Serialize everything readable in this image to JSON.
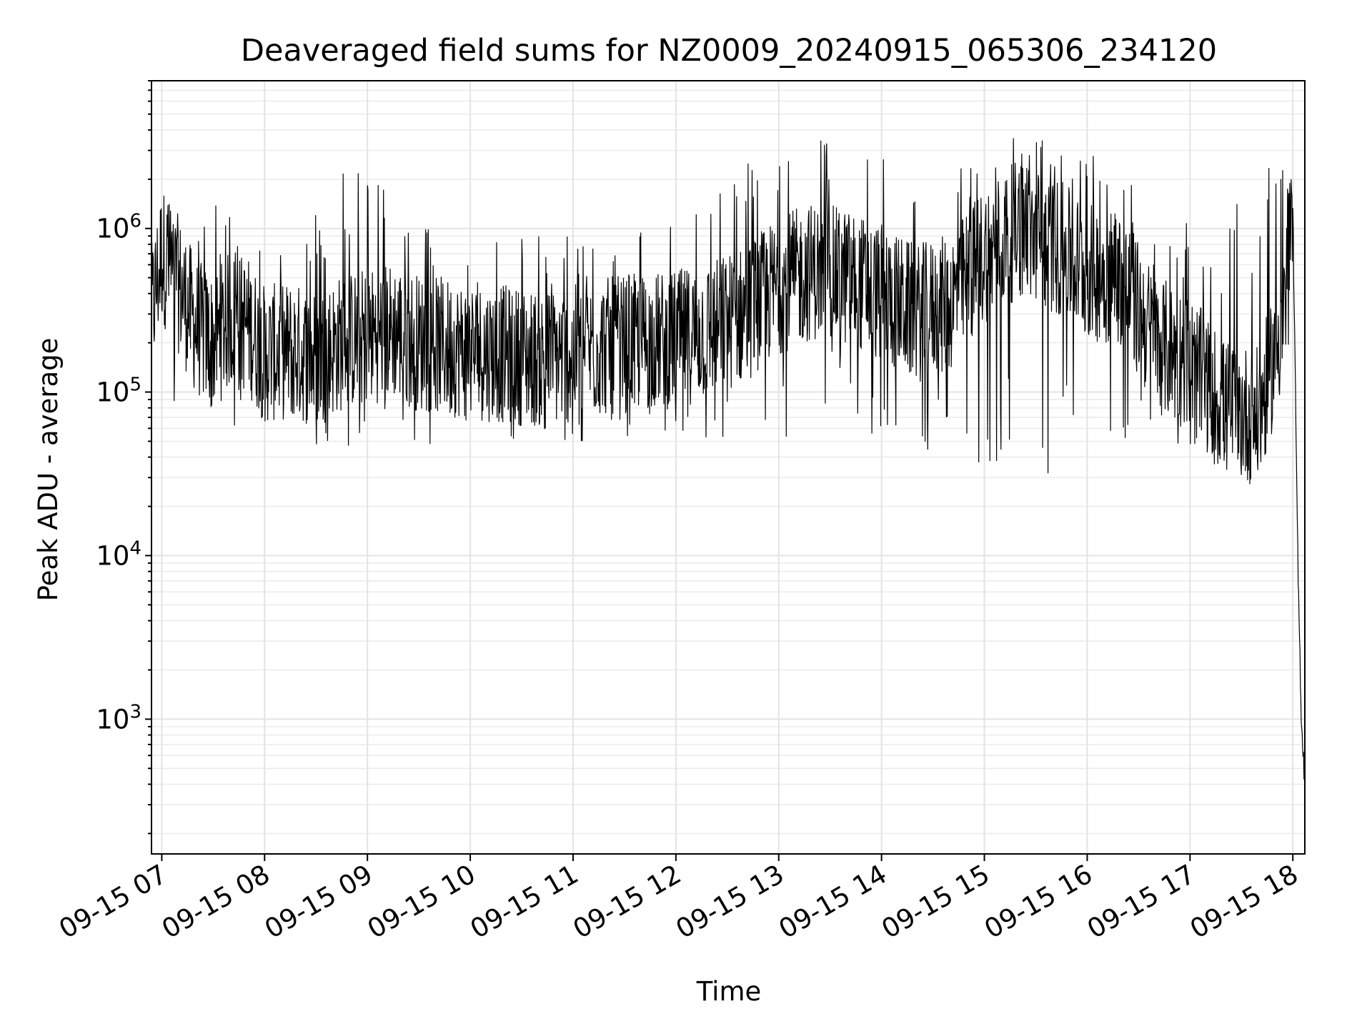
{
  "chart_data": {
    "type": "line",
    "title": "Deaveraged field sums for NZ0009_20240915_065306_234120",
    "xlabel": "Time",
    "ylabel": "Peak ADU - average",
    "yscale": "log",
    "xlim": [
      "2024-09-15 06:54",
      "2024-09-15 18:07"
    ],
    "ylim": [
      150,
      8000000
    ],
    "x_ticks": [
      "09-15 07",
      "09-15 08",
      "09-15 09",
      "09-15 10",
      "09-15 11",
      "09-15 12",
      "09-15 13",
      "09-15 14",
      "09-15 15",
      "09-15 16",
      "09-15 17",
      "09-15 18"
    ],
    "y_ticks": [
      {
        "value": 1000,
        "base": "10",
        "exp": "3"
      },
      {
        "value": 10000,
        "base": "10",
        "exp": "4"
      },
      {
        "value": 100000,
        "base": "10",
        "exp": "5"
      },
      {
        "value": 1000000,
        "base": "10",
        "exp": "6"
      }
    ],
    "grid": true,
    "line_color": "#000000",
    "series": [
      {
        "x": [
          "2024-09-15 06:54",
          "2024-09-15 07:00",
          "2024-09-15 07:10",
          "2024-09-15 07:20",
          "2024-09-15 07:30",
          "2024-09-15 07:40",
          "2024-09-15 07:50",
          "2024-09-15 08:00",
          "2024-09-15 08:15",
          "2024-09-15 08:30",
          "2024-09-15 08:45",
          "2024-09-15 09:00",
          "2024-09-15 09:15",
          "2024-09-15 09:30",
          "2024-09-15 09:45",
          "2024-09-15 10:00",
          "2024-09-15 10:20",
          "2024-09-15 10:40",
          "2024-09-15 11:00",
          "2024-09-15 11:20",
          "2024-09-15 11:40",
          "2024-09-15 12:00",
          "2024-09-15 12:20",
          "2024-09-15 12:40",
          "2024-09-15 13:00",
          "2024-09-15 13:20",
          "2024-09-15 13:40",
          "2024-09-15 14:00",
          "2024-09-15 14:20",
          "2024-09-15 14:40",
          "2024-09-15 15:00",
          "2024-09-15 15:20",
          "2024-09-15 15:40",
          "2024-09-15 16:00",
          "2024-09-15 16:20",
          "2024-09-15 16:40",
          "2024-09-15 17:00",
          "2024-09-15 17:20",
          "2024-09-15 17:40",
          "2024-09-15 17:55",
          "2024-09-15 18:00",
          "2024-09-15 18:03",
          "2024-09-15 18:05",
          "2024-09-15 18:07"
        ],
        "y": [
          300000,
          700000,
          450000,
          250000,
          200000,
          280000,
          260000,
          170000,
          180000,
          160000,
          200000,
          220000,
          240000,
          200000,
          190000,
          180000,
          170000,
          160000,
          170000,
          190000,
          200000,
          210000,
          240000,
          300000,
          450000,
          550000,
          500000,
          400000,
          300000,
          350000,
          700000,
          1000000,
          800000,
          550000,
          500000,
          200000,
          150000,
          80000,
          70000,
          300000,
          1300000,
          8000,
          1000,
          400
        ],
        "peak_max": [
          1400000,
          2300000,
          1000000,
          1300000,
          1400000,
          1300000,
          1300000,
          1200000,
          1300000,
          1300000,
          2800000,
          2900000,
          1400000,
          1200000,
          1100000,
          1000000,
          1000000,
          900000,
          1000000,
          1000000,
          1100000,
          1300000,
          1400000,
          3100000,
          4300000,
          3600000,
          4000000,
          3700000,
          3000000,
          3000000,
          3500000,
          3900000,
          4700000,
          3100000,
          2400000,
          1200000,
          1300000,
          1300000,
          1600000,
          4300000,
          1800000,
          9000,
          1100,
          500
        ],
        "trough_min": [
          150000,
          200000,
          60000,
          50000,
          55000,
          50000,
          50000,
          60000,
          60000,
          45000,
          40000,
          55000,
          50000,
          48000,
          45000,
          42000,
          45000,
          45000,
          45000,
          50000,
          55000,
          50000,
          40000,
          45000,
          35000,
          60000,
          90000,
          40000,
          32000,
          35000,
          30000,
          35000,
          30000,
          40000,
          32000,
          45000,
          45000,
          40000,
          40000,
          500000,
          70000,
          5000,
          500,
          200
        ]
      }
    ]
  }
}
